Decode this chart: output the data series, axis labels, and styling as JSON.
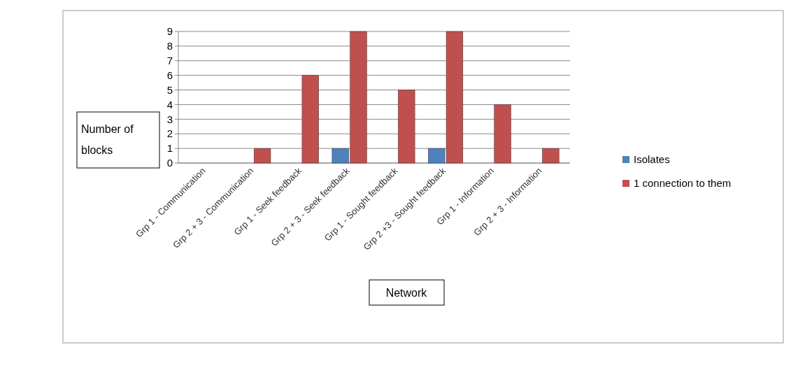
{
  "chart_data": {
    "type": "bar",
    "xlabel": "Network",
    "ylabel": "Number of blocks",
    "categories": [
      "Grp 1 - Communication",
      "Grp 2 + 3 - Communication",
      "Grp 1 - Seek feedback",
      "Grp 2 + 3 - Seek feedback",
      "Grp 1 - Sought feedback",
      "Grp 2 +3 - Sought feedback",
      "Grp 1 - Information",
      "Grp 2 + 3 - Information"
    ],
    "series": [
      {
        "name": "Isolates",
        "color": "#4f81bd",
        "values": [
          0,
          0,
          0,
          1,
          0,
          1,
          0,
          0
        ]
      },
      {
        "name": "1 connection to them",
        "color": "#c0504d",
        "values": [
          0,
          1,
          6,
          9,
          5,
          9,
          4,
          1
        ]
      }
    ],
    "ylim": [
      0,
      9
    ],
    "yticks": [
      0,
      1,
      2,
      3,
      4,
      5,
      6,
      7,
      8,
      9
    ],
    "grid": "y",
    "legend": "right"
  }
}
